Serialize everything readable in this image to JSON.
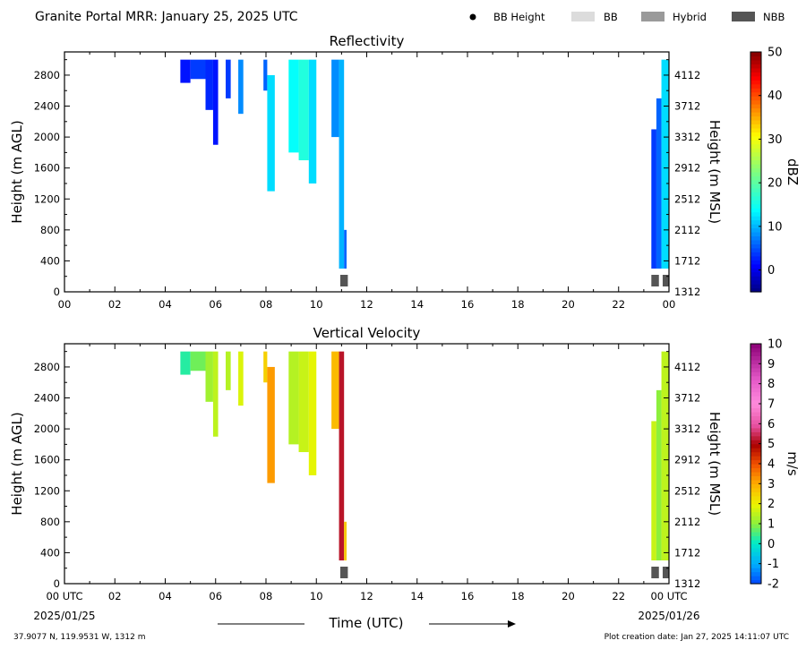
{
  "header": {
    "title": "Granite Portal MRR:  January 25, 2025 UTC",
    "legend": [
      {
        "label": "BB Height",
        "marker": "dot",
        "color": "#000000"
      },
      {
        "label": "BB",
        "marker": "box",
        "color": "#dcdcdc"
      },
      {
        "label": "Hybrid",
        "marker": "box",
        "color": "#9a9a9a"
      },
      {
        "label": "NBB",
        "marker": "box",
        "color": "#555555"
      }
    ]
  },
  "footer": {
    "location": "37.9077 N, 119.9531 W, 1312 m",
    "creation": "Plot creation date: Jan 27, 2025 14:11:07 UTC",
    "xaxis_title": "Time (UTC)",
    "start_date": "2025/01/25",
    "end_date": "2025/01/26"
  },
  "chart_data": [
    {
      "type": "heatmap",
      "title": "Reflectivity",
      "xlabel": "",
      "ylabel": "Height (m AGL)",
      "ylabel_right": "Height (m MSL)",
      "xlim": [
        0,
        24
      ],
      "ylim": [
        0,
        3100
      ],
      "yticks": [
        0,
        400,
        800,
        1200,
        1600,
        2000,
        2400,
        2800
      ],
      "yticks_right": [
        "1312",
        "1712",
        "2112",
        "2512",
        "2912",
        "3312",
        "3712",
        "4112"
      ],
      "xtick_labels": [
        "00",
        "02",
        "04",
        "06",
        "08",
        "10",
        "12",
        "14",
        "16",
        "18",
        "20",
        "22",
        "00"
      ],
      "colorbar": {
        "label": "dBZ",
        "min": -5,
        "max": 50,
        "ticks": [
          0,
          10,
          20,
          30,
          40,
          50
        ],
        "colormap": "jet"
      },
      "cells": [
        {
          "t0": 4.6,
          "t1": 5.0,
          "bottom": 2700,
          "top": 3000,
          "value": 2
        },
        {
          "t0": 5.0,
          "t1": 5.6,
          "bottom": 2750,
          "top": 3000,
          "value": 4
        },
        {
          "t0": 5.6,
          "t1": 5.9,
          "bottom": 2350,
          "top": 3000,
          "value": 3
        },
        {
          "t0": 5.9,
          "t1": 6.1,
          "bottom": 1900,
          "top": 3000,
          "value": 2
        },
        {
          "t0": 6.4,
          "t1": 6.6,
          "bottom": 2500,
          "top": 3000,
          "value": 4
        },
        {
          "t0": 6.9,
          "t1": 7.1,
          "bottom": 2300,
          "top": 3000,
          "value": 8
        },
        {
          "t0": 7.9,
          "t1": 8.05,
          "bottom": 2600,
          "top": 3000,
          "value": 6
        },
        {
          "t0": 8.05,
          "t1": 8.35,
          "bottom": 1300,
          "top": 2800,
          "value": 12
        },
        {
          "t0": 8.9,
          "t1": 9.3,
          "bottom": 1800,
          "top": 3000,
          "value": 14
        },
        {
          "t0": 9.3,
          "t1": 9.7,
          "bottom": 1700,
          "top": 3000,
          "value": 16
        },
        {
          "t0": 9.7,
          "t1": 10.0,
          "bottom": 1400,
          "top": 3000,
          "value": 12
        },
        {
          "t0": 10.6,
          "t1": 10.9,
          "bottom": 2000,
          "top": 3000,
          "value": 8
        },
        {
          "t0": 10.9,
          "t1": 11.1,
          "bottom": 300,
          "top": 3000,
          "value": 10
        },
        {
          "t0": 11.1,
          "t1": 11.2,
          "bottom": 300,
          "top": 800,
          "value": 6
        },
        {
          "t0": 23.3,
          "t1": 23.5,
          "bottom": 300,
          "top": 2100,
          "value": 4
        },
        {
          "t0": 23.5,
          "t1": 23.7,
          "bottom": 300,
          "top": 2500,
          "value": 6
        },
        {
          "t0": 23.7,
          "t1": 24.0,
          "bottom": 300,
          "top": 3000,
          "value": 12
        }
      ],
      "bb_markers": [
        {
          "t0": 10.95,
          "t1": 11.25,
          "type": "NBB"
        },
        {
          "t0": 23.3,
          "t1": 23.6,
          "type": "NBB"
        },
        {
          "t0": 23.75,
          "t1": 24.0,
          "type": "NBB"
        }
      ]
    },
    {
      "type": "heatmap",
      "title": "Vertical Velocity",
      "xlabel": "Time (UTC)",
      "ylabel": "Height (m AGL)",
      "ylabel_right": "Height (m MSL)",
      "xlim": [
        0,
        24
      ],
      "ylim": [
        0,
        3100
      ],
      "yticks": [
        0,
        400,
        800,
        1200,
        1600,
        2000,
        2400,
        2800
      ],
      "yticks_right": [
        "1312",
        "1712",
        "2112",
        "2512",
        "2912",
        "3312",
        "3712",
        "4112"
      ],
      "xtick_labels": [
        "00 UTC",
        "02",
        "04",
        "06",
        "08",
        "10",
        "12",
        "14",
        "16",
        "18",
        "20",
        "22",
        "00 UTC"
      ],
      "colorbar": {
        "label": "m/s",
        "min": -2,
        "max": 10,
        "ticks": [
          -2,
          -1,
          0,
          1,
          2,
          3,
          4,
          5,
          6,
          7,
          8,
          9,
          10
        ],
        "colormap": "velocity"
      },
      "cells": [
        {
          "t0": 4.6,
          "t1": 5.0,
          "bottom": 2700,
          "top": 3000,
          "value": 0.3
        },
        {
          "t0": 5.0,
          "t1": 5.6,
          "bottom": 2750,
          "top": 3000,
          "value": 0.8
        },
        {
          "t0": 5.6,
          "t1": 5.9,
          "bottom": 2350,
          "top": 3000,
          "value": 1.2
        },
        {
          "t0": 5.9,
          "t1": 6.1,
          "bottom": 1900,
          "top": 3000,
          "value": 1.5
        },
        {
          "t0": 6.4,
          "t1": 6.6,
          "bottom": 2500,
          "top": 3000,
          "value": 1.4
        },
        {
          "t0": 6.9,
          "t1": 7.1,
          "bottom": 2300,
          "top": 3000,
          "value": 1.8
        },
        {
          "t0": 7.9,
          "t1": 8.05,
          "bottom": 2600,
          "top": 3000,
          "value": 2.5
        },
        {
          "t0": 8.05,
          "t1": 8.35,
          "bottom": 1300,
          "top": 2800,
          "value": 3.2
        },
        {
          "t0": 8.9,
          "t1": 9.3,
          "bottom": 1800,
          "top": 3000,
          "value": 1.4
        },
        {
          "t0": 9.3,
          "t1": 9.7,
          "bottom": 1700,
          "top": 3000,
          "value": 1.6
        },
        {
          "t0": 9.7,
          "t1": 10.0,
          "bottom": 1400,
          "top": 3000,
          "value": 1.9
        },
        {
          "t0": 10.6,
          "t1": 10.9,
          "bottom": 2000,
          "top": 3000,
          "value": 2.8
        },
        {
          "t0": 10.9,
          "t1": 11.1,
          "bottom": 300,
          "top": 3000,
          "value": 5.2
        },
        {
          "t0": 11.1,
          "t1": 11.2,
          "bottom": 300,
          "top": 800,
          "value": 2.6
        },
        {
          "t0": 23.3,
          "t1": 23.5,
          "bottom": 300,
          "top": 2100,
          "value": 1.6
        },
        {
          "t0": 23.5,
          "t1": 23.7,
          "bottom": 300,
          "top": 2500,
          "value": 1.0
        },
        {
          "t0": 23.7,
          "t1": 24.0,
          "bottom": 300,
          "top": 3000,
          "value": 1.5
        }
      ],
      "bb_markers": [
        {
          "t0": 10.95,
          "t1": 11.25,
          "type": "NBB"
        },
        {
          "t0": 23.3,
          "t1": 23.6,
          "type": "NBB"
        },
        {
          "t0": 23.75,
          "t1": 24.0,
          "type": "NBB"
        }
      ]
    }
  ]
}
